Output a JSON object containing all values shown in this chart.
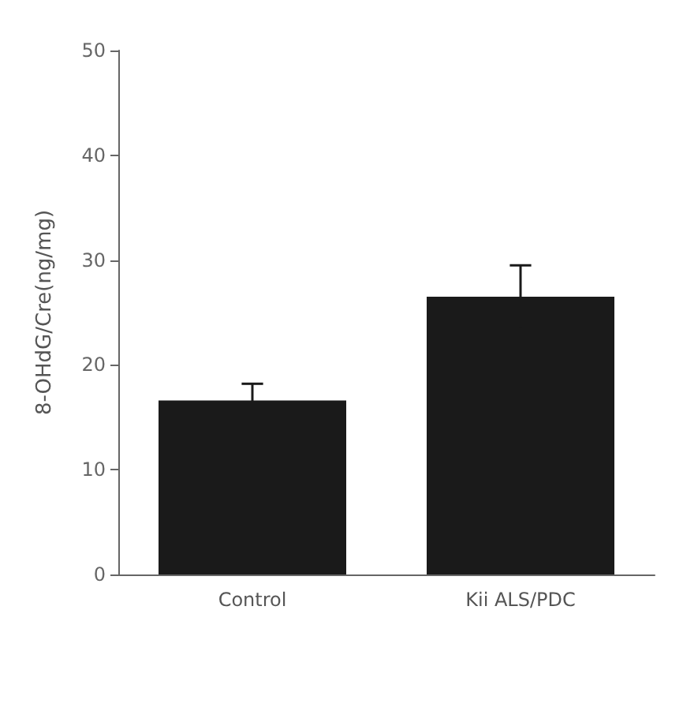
{
  "chart_data": {
    "type": "bar",
    "ylabel": "8-OHdG/Cre(ng/mg)",
    "categories": [
      "Control",
      "Kii ALS/PDC"
    ],
    "values": [
      16.6,
      26.5
    ],
    "errors": [
      1.6,
      3.0
    ],
    "color": "#1a1a1a",
    "ylim": [
      0,
      50
    ],
    "yticks": [
      0,
      10,
      20,
      30,
      40,
      50
    ],
    "grid": false
  }
}
